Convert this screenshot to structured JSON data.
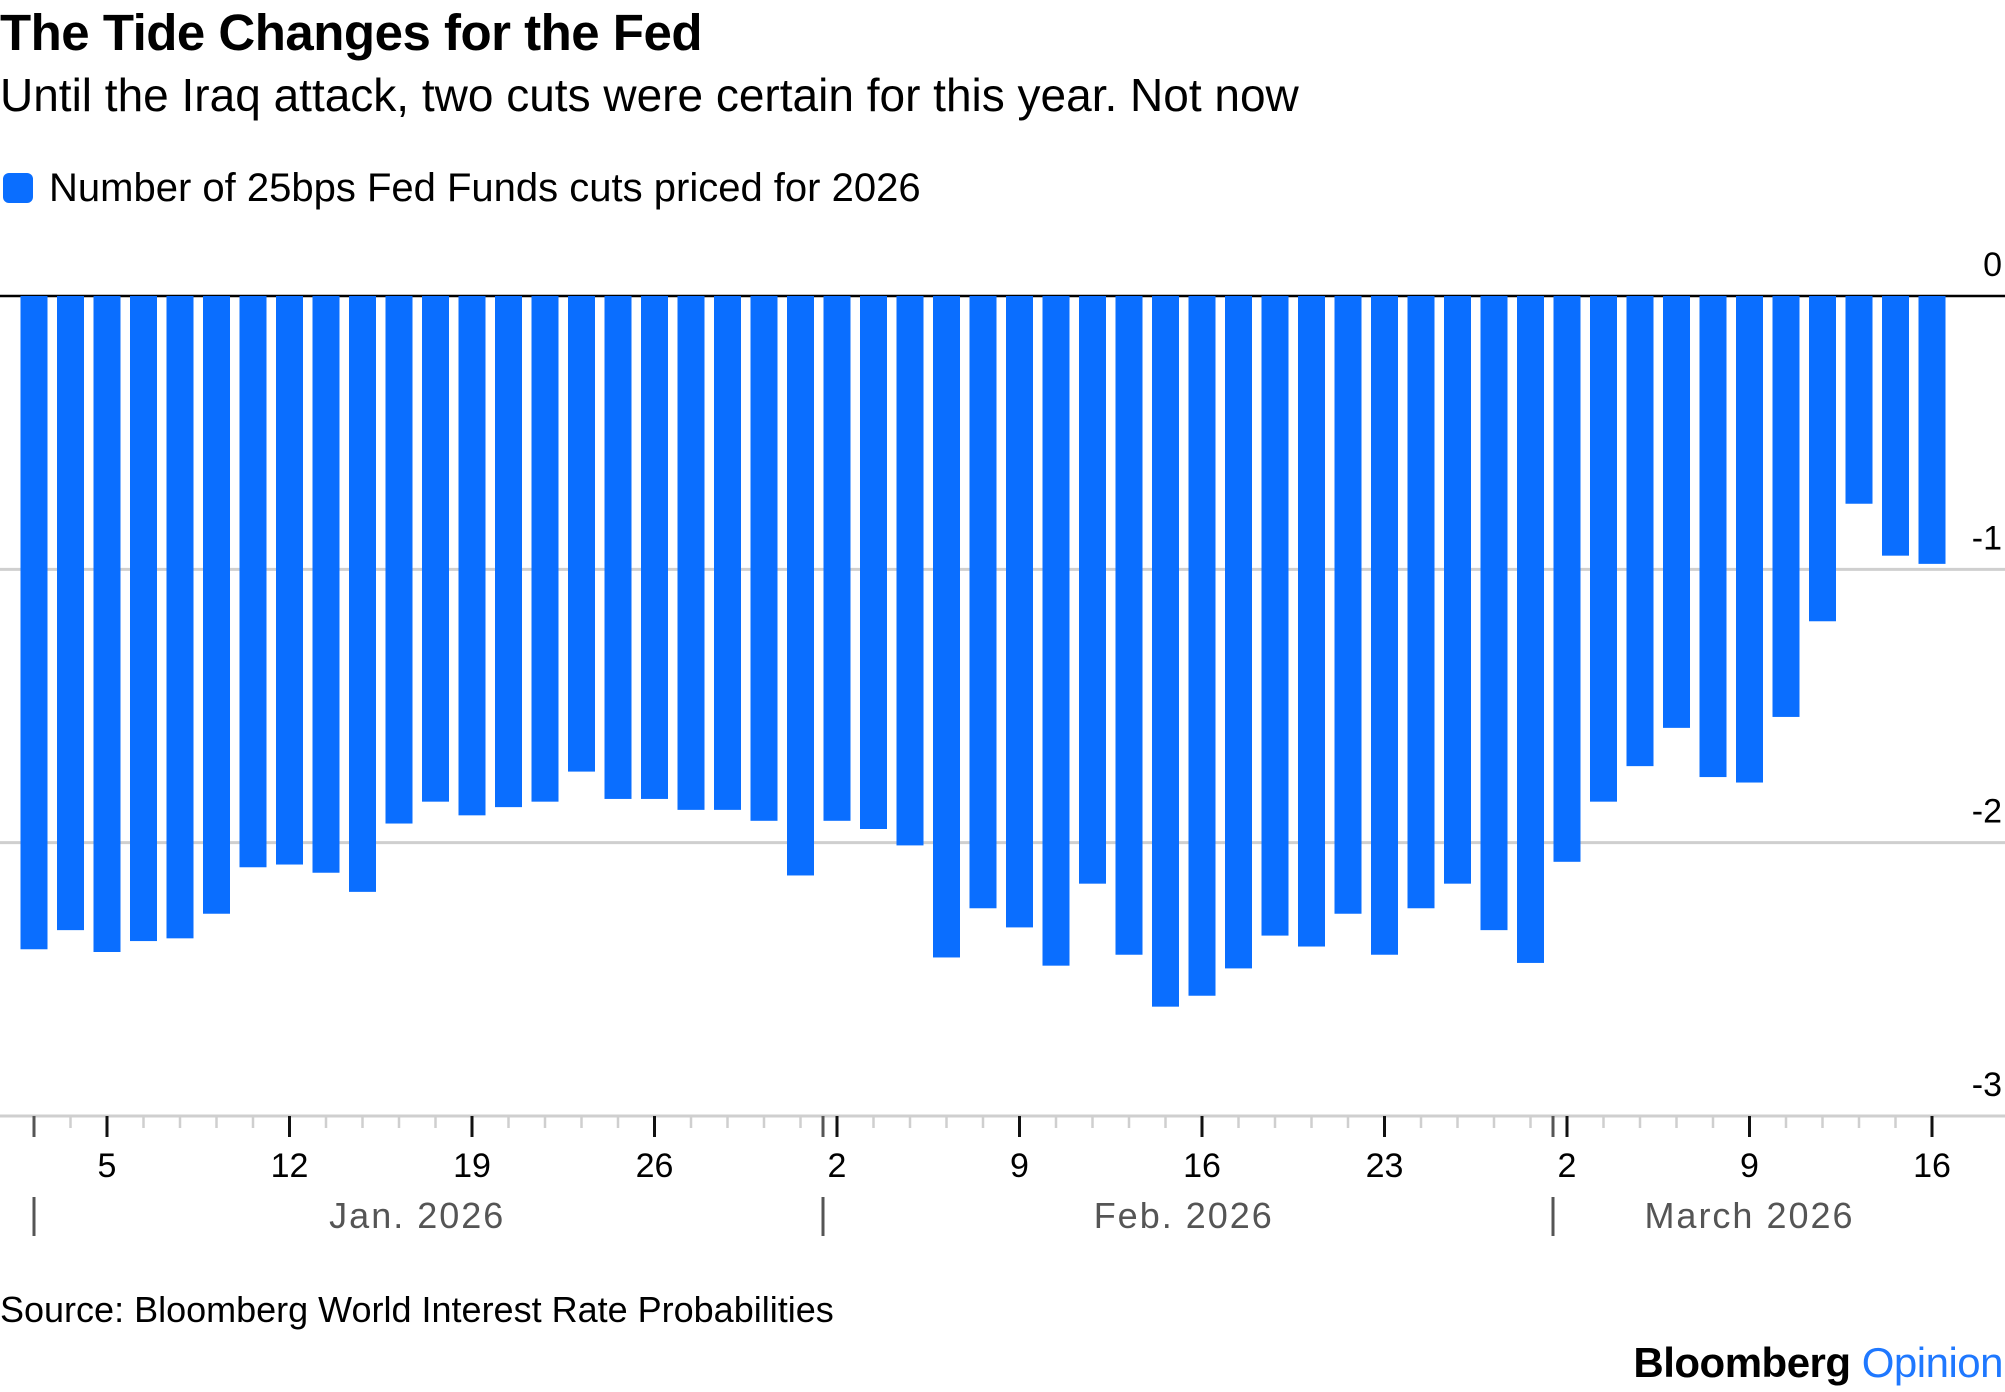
{
  "header": {
    "title": "The Tide Changes for the Fed",
    "subtitle": "Until the Iraq attack, two cuts were certain for this year. Not now"
  },
  "legend": {
    "label": "Number of 25bps Fed Funds cuts priced for 2026",
    "color": "#0a6eff"
  },
  "footer": {
    "source": "Source: Bloomberg World Interest Rate Probabilities",
    "brand_primary": "Bloomberg",
    "brand_secondary": "Opinion",
    "brand_accent_color": "#1f78ff"
  },
  "chart_data": {
    "type": "bar",
    "title": "The Tide Changes for the Fed",
    "subtitle": "Until the Iraq attack, two cuts were certain for this year. Not now",
    "xlabel": "",
    "ylabel": "",
    "ylim": [
      -3,
      0
    ],
    "yticks": [
      0,
      -1,
      -2,
      -3
    ],
    "ytick_labels": [
      "0",
      "-1",
      "-2",
      "-3"
    ],
    "y_axis_position": "right",
    "grid": true,
    "legend_position": "top-left",
    "bar_color": "#0a6eff",
    "categories": [
      "2026-01-01",
      "2026-01-02",
      "2026-01-05",
      "2026-01-06",
      "2026-01-07",
      "2026-01-08",
      "2026-01-09",
      "2026-01-12",
      "2026-01-13",
      "2026-01-14",
      "2026-01-15",
      "2026-01-16",
      "2026-01-19",
      "2026-01-20",
      "2026-01-21",
      "2026-01-22",
      "2026-01-23",
      "2026-01-26",
      "2026-01-27",
      "2026-01-28",
      "2026-01-29",
      "2026-01-30",
      "2026-02-02",
      "2026-02-03",
      "2026-02-04",
      "2026-02-05",
      "2026-02-06",
      "2026-02-09",
      "2026-02-10",
      "2026-02-11",
      "2026-02-12",
      "2026-02-13",
      "2026-02-16",
      "2026-02-17",
      "2026-02-18",
      "2026-02-19",
      "2026-02-20",
      "2026-02-23",
      "2026-02-24",
      "2026-02-25",
      "2026-02-26",
      "2026-02-27",
      "2026-03-02",
      "2026-03-03",
      "2026-03-04",
      "2026-03-05",
      "2026-03-06",
      "2026-03-09",
      "2026-03-10",
      "2026-03-11",
      "2026-03-12",
      "2026-03-13",
      "2026-03-16"
    ],
    "series": [
      {
        "name": "Number of 25bps Fed Funds cuts priced for 2026",
        "values": [
          -2.39,
          -2.32,
          -2.4,
          -2.36,
          -2.35,
          -2.26,
          -2.09,
          -2.08,
          -2.11,
          -2.18,
          -1.93,
          -1.85,
          -1.9,
          -1.87,
          -1.85,
          -1.74,
          -1.84,
          -1.84,
          -1.88,
          -1.88,
          -1.92,
          -2.12,
          -1.92,
          -1.95,
          -2.01,
          -2.42,
          -2.24,
          -2.31,
          -2.45,
          -2.15,
          -2.41,
          -2.6,
          -2.56,
          -2.46,
          -2.34,
          -2.38,
          -2.26,
          -2.41,
          -2.24,
          -2.15,
          -2.32,
          -2.44,
          -2.07,
          -1.85,
          -1.72,
          -1.58,
          -1.76,
          -1.78,
          -1.54,
          -1.19,
          -0.76,
          -0.95,
          -0.98
        ]
      }
    ],
    "x_day_ticks": [
      {
        "index": 2,
        "label": "5"
      },
      {
        "index": 7,
        "label": "12"
      },
      {
        "index": 12,
        "label": "19"
      },
      {
        "index": 17,
        "label": "26"
      },
      {
        "index": 22,
        "label": "2"
      },
      {
        "index": 27,
        "label": "9"
      },
      {
        "index": 32,
        "label": "16"
      },
      {
        "index": 37,
        "label": "23"
      },
      {
        "index": 42,
        "label": "2"
      },
      {
        "index": 47,
        "label": "9"
      },
      {
        "index": 52,
        "label": "16"
      }
    ],
    "x_month_labels": [
      {
        "start_index": 0,
        "label": "Jan. 2026"
      },
      {
        "start_index": 22,
        "label": "Feb. 2026"
      },
      {
        "start_index": 42,
        "label": "March 2026"
      }
    ]
  }
}
